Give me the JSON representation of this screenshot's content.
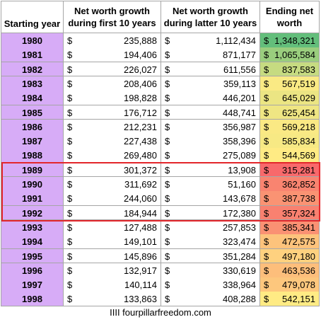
{
  "header": [
    "Starting year",
    "Net worth growth during first 10 years",
    "Net worth growth during latter 10 years",
    "Ending net worth"
  ],
  "rows": [
    [
      "1980",
      "$",
      "235,888",
      "$",
      "1,112,434",
      "$",
      "1,348,321"
    ],
    [
      "1981",
      "$",
      "194,406",
      "$",
      "871,177",
      "$",
      "1,065,584"
    ],
    [
      "1982",
      "$",
      "226,027",
      "$",
      "611,556",
      "$",
      "837,583"
    ],
    [
      "1983",
      "$",
      "208,406",
      "$",
      "359,113",
      "$",
      "567,519"
    ],
    [
      "1984",
      "$",
      "198,828",
      "$",
      "446,201",
      "$",
      "645,029"
    ],
    [
      "1985",
      "$",
      "176,712",
      "$",
      "448,741",
      "$",
      "625,454"
    ],
    [
      "1986",
      "$",
      "212,231",
      "$",
      "356,987",
      "$",
      "569,218"
    ],
    [
      "1987",
      "$",
      "227,438",
      "$",
      "358,396",
      "$",
      "585,834"
    ],
    [
      "1988",
      "$",
      "269,480",
      "$",
      "275,089",
      "$",
      "544,569"
    ],
    [
      "1989",
      "$",
      "301,372",
      "$",
      "13,908",
      "$",
      "315,281"
    ],
    [
      "1990",
      "$",
      "311,692",
      "$",
      "51,160",
      "$",
      "362,852"
    ],
    [
      "1991",
      "$",
      "244,060",
      "$",
      "143,678",
      "$",
      "387,738"
    ],
    [
      "1992",
      "$",
      "184,944",
      "$",
      "172,380",
      "$",
      "357,324"
    ],
    [
      "1993",
      "$",
      "127,488",
      "$",
      "257,853",
      "$",
      "385,341"
    ],
    [
      "1994",
      "$",
      "149,101",
      "$",
      "323,474",
      "$",
      "472,575"
    ],
    [
      "1995",
      "$",
      "145,896",
      "$",
      "351,284",
      "$",
      "497,180"
    ],
    [
      "1996",
      "$",
      "132,917",
      "$",
      "330,619",
      "$",
      "463,536"
    ],
    [
      "1997",
      "$",
      "140,114",
      "$",
      "338,964",
      "$",
      "479,078"
    ],
    [
      "1998",
      "$",
      "133,863",
      "$",
      "408,288",
      "$",
      "542,151"
    ]
  ],
  "footer": "IIII fourpillarfreedom.com"
}
